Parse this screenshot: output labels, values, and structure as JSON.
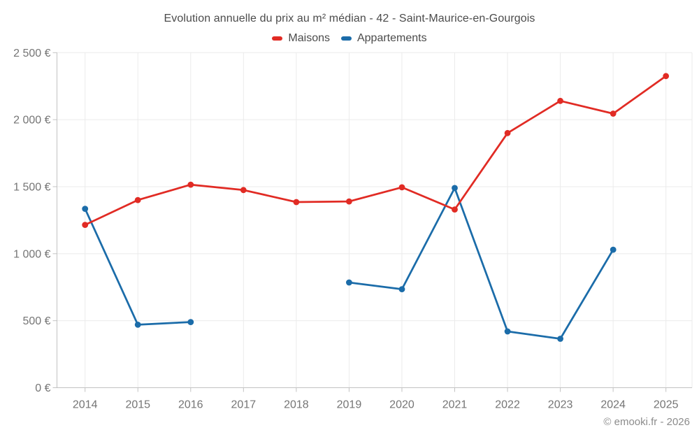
{
  "page": {
    "copyright": "© emooki.fr - 2026"
  },
  "colors": {
    "maisons": "#e12b24",
    "appartements": "#1b6ca9",
    "grid": "#ebebeb",
    "axis": "#c2c2c2",
    "tick_text": "#757575",
    "title_text": "#4b4b4b",
    "legend_text": "#4b4b4b",
    "watermark_text": "#8c8c8c"
  },
  "chart_data": {
    "type": "line",
    "title": "Evolution annuelle du prix au m² médian - 42 - Saint-Maurice-en-Gourgois",
    "categories": [
      "2014",
      "2015",
      "2016",
      "2017",
      "2018",
      "2019",
      "2020",
      "2021",
      "2022",
      "2023",
      "2024",
      "2025"
    ],
    "series": [
      {
        "name": "Maisons",
        "color": "#e12b24",
        "values": [
          1215,
          1400,
          1515,
          1475,
          1385,
          1390,
          1495,
          1330,
          1900,
          2140,
          2045,
          2325
        ]
      },
      {
        "name": "Appartements",
        "color": "#1b6ca9",
        "values": [
          1335,
          470,
          490,
          null,
          null,
          785,
          735,
          1490,
          420,
          365,
          1030,
          null
        ]
      }
    ],
    "xlabel": "",
    "ylabel": "",
    "unit": "€",
    "ylim": [
      0,
      2500
    ],
    "yticks": [
      {
        "value": 0,
        "label": "0 €"
      },
      {
        "value": 500,
        "label": "500 €"
      },
      {
        "value": 1000,
        "label": "1 000 €"
      },
      {
        "value": 1500,
        "label": "1 500 €"
      },
      {
        "value": 2000,
        "label": "2 000 €"
      },
      {
        "value": 2500,
        "label": "2 500 €"
      }
    ],
    "grid": true,
    "legend_position": "top"
  }
}
